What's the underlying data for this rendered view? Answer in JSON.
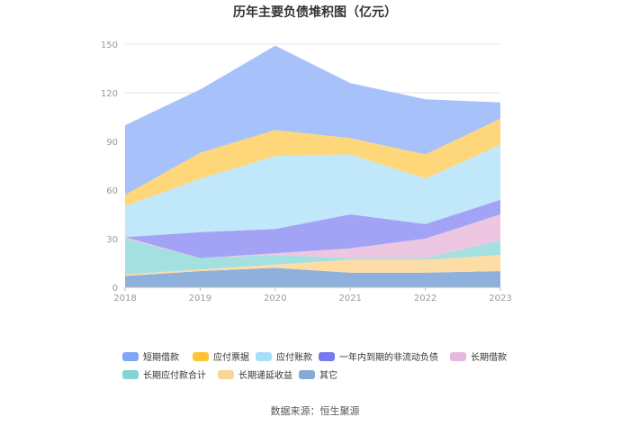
{
  "chart_data": {
    "type": "area",
    "title": "历年主要负债堆积图（亿元）",
    "source": "数据来源：恒生聚源",
    "x": [
      "2018",
      "2019",
      "2020",
      "2021",
      "2022",
      "2023"
    ],
    "yticks": [
      0,
      30,
      60,
      90,
      120,
      150
    ],
    "ylim": [
      0,
      150
    ],
    "grid": true,
    "legend_position": "bottom",
    "series": [
      {
        "name": "其它",
        "color": "#8eb0dc",
        "values": [
          7,
          10,
          12,
          9,
          9,
          10
        ]
      },
      {
        "name": "长期递延收益",
        "color": "#fddca5",
        "values": [
          1,
          1,
          2,
          8,
          8,
          10
        ]
      },
      {
        "name": "长期应付款合计",
        "color": "#a3e0df",
        "values": [
          22,
          7,
          6,
          1,
          1,
          9
        ]
      },
      {
        "name": "长期借款",
        "color": "#edc6e2",
        "values": [
          1,
          0,
          1,
          6,
          12,
          16
        ]
      },
      {
        "name": "一年内到期的非流动负债",
        "color": "#a3a3f6",
        "values": [
          0,
          16,
          15,
          21,
          9,
          9
        ]
      },
      {
        "name": "应付账款",
        "color": "#c1e7fb",
        "values": [
          19,
          33,
          45,
          37,
          28,
          34
        ]
      },
      {
        "name": "应付票据",
        "color": "#fed77b",
        "values": [
          7,
          16,
          16,
          10,
          15,
          16
        ]
      },
      {
        "name": "短期借款",
        "color": "#a7c1fb",
        "values": [
          43,
          39,
          52,
          34,
          34,
          10
        ]
      }
    ],
    "legend": [
      {
        "name": "短期借款",
        "color": "#7fa7f6"
      },
      {
        "name": "应付票据",
        "color": "#fbc534"
      },
      {
        "name": "应付账款",
        "color": "#a7def9"
      },
      {
        "name": "一年内到期的非流动负债",
        "color": "#7879ee"
      },
      {
        "name": "长期借款",
        "color": "#e5b8dc"
      },
      {
        "name": "长期应付款合计",
        "color": "#83d4d3"
      },
      {
        "name": "长期递延收益",
        "color": "#fbd596"
      },
      {
        "name": "其它",
        "color": "#86a9d6"
      }
    ]
  }
}
